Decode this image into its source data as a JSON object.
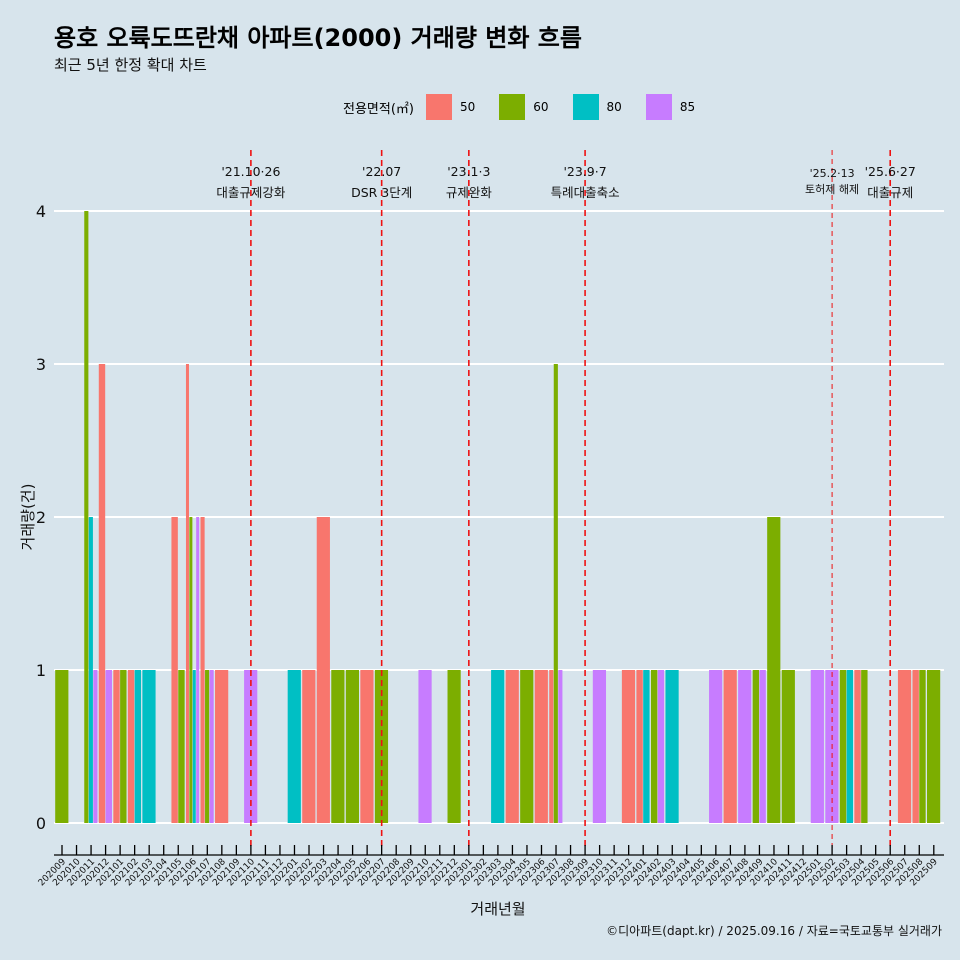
{
  "title": "용호 오륙도뜨란채 아파트(2000) 거래량 변화 흐름",
  "subtitle": "최근 5년 한정 확대 차트",
  "footer": "©디아파트(dapt.kr) / 2025.09.16 / 자료=국토교통부 실거래가",
  "legend": {
    "title": "전용면적(㎡)",
    "items": [
      {
        "label": "50",
        "color": "#f8766d"
      },
      {
        "label": "60",
        "color": "#7cae00"
      },
      {
        "label": "80",
        "color": "#00bfc4"
      },
      {
        "label": "85",
        "color": "#c77cff"
      }
    ]
  },
  "chart_data": {
    "type": "bar",
    "xlabel": "거래년월",
    "ylabel": "거래량(건)",
    "ylim": [
      0,
      4
    ],
    "yticks": [
      0,
      1,
      2,
      3,
      4
    ],
    "grid": true,
    "legend_position": "top",
    "months": [
      "202009",
      "202010",
      "202011",
      "202012",
      "202101",
      "202102",
      "202103",
      "202104",
      "202105",
      "202106",
      "202107",
      "202108",
      "202109",
      "202110",
      "202111",
      "202112",
      "202201",
      "202202",
      "202203",
      "202204",
      "202205",
      "202206",
      "202207",
      "202208",
      "202209",
      "202210",
      "202211",
      "202212",
      "202301",
      "202302",
      "202303",
      "202304",
      "202305",
      "202306",
      "202307",
      "202308",
      "202309",
      "202310",
      "202311",
      "202312",
      "202401",
      "202402",
      "202403",
      "202404",
      "202405",
      "202406",
      "202407",
      "202408",
      "202409",
      "202410",
      "202411",
      "202412",
      "202501",
      "202502",
      "202503",
      "202504",
      "202505",
      "202506",
      "202507",
      "202508",
      "202509"
    ],
    "tick_labels": [
      "202009",
      "202010",
      "202011",
      "202012",
      "202101",
      "202102",
      "202103",
      "202104",
      "202105",
      "202106",
      "202107",
      "202108",
      "202109",
      "202110",
      "202111",
      "202112",
      "202201",
      "202202",
      "202203",
      "202204",
      "202205",
      "202206",
      "202207",
      "202208",
      "202209",
      "202210",
      "202211",
      "202212",
      "202301",
      "202302",
      "202303",
      "202304",
      "202305",
      "202306",
      "202307",
      "202308",
      "202309",
      "202310",
      "202311",
      "202312",
      "202401",
      "202402",
      "202403",
      "202404",
      "202405",
      "202406",
      "202407",
      "202408",
      "202409",
      "202410",
      "202411",
      "202412",
      "202501",
      "202502",
      "202503",
      "202504",
      "202505",
      "202506",
      "202507",
      "202508",
      "202509"
    ],
    "bars": [
      {
        "month": "202009",
        "items": [
          {
            "area": "60",
            "value": 1
          }
        ]
      },
      {
        "month": "202011",
        "items": [
          {
            "area": "60",
            "value": 4
          },
          {
            "area": "80",
            "value": 2
          },
          {
            "area": "85",
            "value": 1
          }
        ]
      },
      {
        "month": "202012",
        "items": [
          {
            "area": "50",
            "value": 3
          },
          {
            "area": "85",
            "value": 1
          }
        ]
      },
      {
        "month": "202101",
        "items": [
          {
            "area": "50",
            "value": 1
          },
          {
            "area": "60",
            "value": 1
          }
        ]
      },
      {
        "month": "202102",
        "items": [
          {
            "area": "50",
            "value": 1
          },
          {
            "area": "80",
            "value": 1
          }
        ]
      },
      {
        "month": "202103",
        "items": [
          {
            "area": "80",
            "value": 1
          }
        ]
      },
      {
        "month": "202105",
        "items": [
          {
            "area": "50",
            "value": 2
          },
          {
            "area": "60",
            "value": 1
          }
        ]
      },
      {
        "month": "202106",
        "items": [
          {
            "area": "50",
            "value": 3
          },
          {
            "area": "60",
            "value": 2
          },
          {
            "area": "80",
            "value": 1
          },
          {
            "area": "85",
            "value": 2
          }
        ]
      },
      {
        "month": "202107",
        "items": [
          {
            "area": "50",
            "value": 2
          },
          {
            "area": "60",
            "value": 1
          },
          {
            "area": "85",
            "value": 1
          }
        ]
      },
      {
        "month": "202108",
        "items": [
          {
            "area": "50",
            "value": 1
          }
        ]
      },
      {
        "month": "202110",
        "items": [
          {
            "area": "85",
            "value": 1
          }
        ]
      },
      {
        "month": "202201",
        "items": [
          {
            "area": "80",
            "value": 1
          }
        ]
      },
      {
        "month": "202202",
        "items": [
          {
            "area": "50",
            "value": 1
          }
        ]
      },
      {
        "month": "202203",
        "items": [
          {
            "area": "50",
            "value": 2
          }
        ]
      },
      {
        "month": "202204",
        "items": [
          {
            "area": "60",
            "value": 1
          }
        ]
      },
      {
        "month": "202205",
        "items": [
          {
            "area": "60",
            "value": 1
          }
        ]
      },
      {
        "month": "202206",
        "items": [
          {
            "area": "50",
            "value": 1
          }
        ]
      },
      {
        "month": "202207",
        "items": [
          {
            "area": "60",
            "value": 1
          }
        ]
      },
      {
        "month": "202210",
        "items": [
          {
            "area": "85",
            "value": 1
          }
        ]
      },
      {
        "month": "202212",
        "items": [
          {
            "area": "60",
            "value": 1
          }
        ]
      },
      {
        "month": "202303",
        "items": [
          {
            "area": "80",
            "value": 1
          }
        ]
      },
      {
        "month": "202304",
        "items": [
          {
            "area": "50",
            "value": 1
          }
        ]
      },
      {
        "month": "202305",
        "items": [
          {
            "area": "60",
            "value": 1
          }
        ]
      },
      {
        "month": "202306",
        "items": [
          {
            "area": "50",
            "value": 1
          }
        ]
      },
      {
        "month": "202307",
        "items": [
          {
            "area": "50",
            "value": 1
          },
          {
            "area": "60",
            "value": 3
          },
          {
            "area": "85",
            "value": 1
          }
        ]
      },
      {
        "month": "202310",
        "items": [
          {
            "area": "85",
            "value": 1
          }
        ]
      },
      {
        "month": "202312",
        "items": [
          {
            "area": "50",
            "value": 1
          }
        ]
      },
      {
        "month": "202401",
        "items": [
          {
            "area": "50",
            "value": 1
          },
          {
            "area": "80",
            "value": 1
          }
        ]
      },
      {
        "month": "202402",
        "items": [
          {
            "area": "60",
            "value": 1
          },
          {
            "area": "85",
            "value": 1
          }
        ]
      },
      {
        "month": "202403",
        "items": [
          {
            "area": "80",
            "value": 1
          }
        ]
      },
      {
        "month": "202406",
        "items": [
          {
            "area": "85",
            "value": 1
          }
        ]
      },
      {
        "month": "202407",
        "items": [
          {
            "area": "50",
            "value": 1
          }
        ]
      },
      {
        "month": "202408",
        "items": [
          {
            "area": "85",
            "value": 1
          }
        ]
      },
      {
        "month": "202409",
        "items": [
          {
            "area": "60",
            "value": 1
          },
          {
            "area": "85",
            "value": 1
          }
        ]
      },
      {
        "month": "202410",
        "items": [
          {
            "area": "60",
            "value": 2
          }
        ]
      },
      {
        "month": "202411",
        "items": [
          {
            "area": "60",
            "value": 1
          }
        ]
      },
      {
        "month": "202501",
        "items": [
          {
            "area": "85",
            "value": 1
          }
        ]
      },
      {
        "month": "202502",
        "items": [
          {
            "area": "85",
            "value": 1
          }
        ]
      },
      {
        "month": "202503",
        "items": [
          {
            "area": "60",
            "value": 1
          },
          {
            "area": "80",
            "value": 1
          }
        ]
      },
      {
        "month": "202504",
        "items": [
          {
            "area": "50",
            "value": 1
          },
          {
            "area": "60",
            "value": 1
          }
        ]
      },
      {
        "month": "202507",
        "items": [
          {
            "area": "50",
            "value": 1
          }
        ]
      },
      {
        "month": "202508",
        "items": [
          {
            "area": "50",
            "value": 1
          },
          {
            "area": "60",
            "value": 1
          }
        ]
      },
      {
        "month": "202509",
        "items": [
          {
            "area": "60",
            "value": 1
          }
        ]
      }
    ],
    "events": [
      {
        "month": "202110",
        "date": "'21.10·26",
        "label": "대출규제강화",
        "style": "dashed"
      },
      {
        "month": "202207",
        "date": "'22.07",
        "label": "DSR 3단계",
        "style": "dashed"
      },
      {
        "month": "202301",
        "date": "'23.1·3",
        "label": "규제완화",
        "style": "dashed"
      },
      {
        "month": "202309",
        "date": "'23.9·7",
        "label": "특례대출축소",
        "style": "dashed"
      },
      {
        "month": "202502",
        "date": "'25.2·13",
        "label": "토허제 해제",
        "style": "thin-dashed"
      },
      {
        "month": "202506",
        "date": "'25.6·27",
        "label": "대출규제",
        "style": "dashed"
      }
    ]
  }
}
